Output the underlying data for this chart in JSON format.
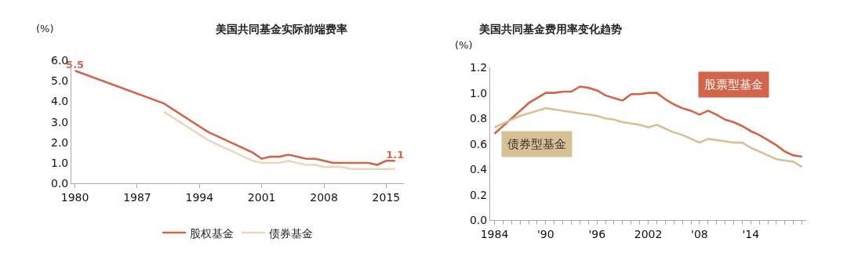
{
  "chart_data": [
    {
      "type": "line",
      "title": "美国共同基金实际前端费率",
      "ylabel": "(%)",
      "legend": "bottom",
      "xlim": [
        1979.6,
        2017
      ],
      "xticks": [
        1980,
        1987,
        1994,
        2001,
        2008,
        2015
      ],
      "ylim": [
        0,
        6
      ],
      "yticks": [
        {
          "value": 0,
          "label": "0.0"
        },
        {
          "value": 1,
          "label": "1.0"
        },
        {
          "value": 2,
          "label": "2.0"
        },
        {
          "value": 3,
          "label": "3.0"
        },
        {
          "value": 4,
          "label": "4.0"
        },
        {
          "value": 5,
          "label": "5.0"
        },
        {
          "value": 6,
          "label": "6.0"
        }
      ],
      "series": [
        {
          "name": "股权基金",
          "color": "#d0654a",
          "x": [
            1980,
            1990,
            1995,
            2000,
            2001,
            2002,
            2003,
            2004,
            2005,
            2006,
            2007,
            2008,
            2009,
            2010,
            2011,
            2012,
            2013,
            2014,
            2015,
            2016
          ],
          "values": [
            5.5,
            3.9,
            2.5,
            1.5,
            1.2,
            1.3,
            1.3,
            1.4,
            1.3,
            1.2,
            1.2,
            1.1,
            1.0,
            1.0,
            1.0,
            1.0,
            1.0,
            0.9,
            1.1,
            1.1
          ],
          "value_labels": [
            "5.5",
            null,
            null,
            null,
            null,
            null,
            null,
            null,
            null,
            null,
            null,
            null,
            null,
            null,
            null,
            null,
            null,
            null,
            null,
            "1.1"
          ]
        },
        {
          "name": "债券基金",
          "color": "#ead7b9",
          "x": [
            1990,
            1995,
            2000,
            2001,
            2002,
            2003,
            2004,
            2005,
            2006,
            2007,
            2008,
            2009,
            2010,
            2011,
            2012,
            2013,
            2014,
            2015,
            2016
          ],
          "values": [
            3.5,
            2.1,
            1.1,
            1.0,
            1.0,
            1.0,
            1.1,
            1.0,
            0.9,
            0.9,
            0.8,
            0.8,
            0.8,
            0.7,
            0.7,
            0.7,
            0.7,
            0.7,
            0.7
          ]
        }
      ]
    },
    {
      "type": "line",
      "title": "美国共同基金费用率变化趋势",
      "ylabel": "(%)",
      "legend": false,
      "x": [
        1984,
        1985,
        1986,
        1987,
        1988,
        1989,
        1990,
        1991,
        1992,
        1993,
        1994,
        1995,
        1996,
        1997,
        1998,
        1999,
        2000,
        2001,
        2002,
        2003,
        2004,
        2005,
        2006,
        2007,
        2008,
        2009,
        2010,
        2011,
        2012,
        2013,
        2014,
        2015,
        2016,
        2017,
        2018,
        2019,
        2020
      ],
      "xlim": [
        1983.5,
        2020.5
      ],
      "xticks": [
        1984,
        {
          "value": 1985,
          "label": null
        },
        {
          "value": 1986,
          "label": null
        },
        {
          "value": 1987,
          "label": null
        },
        {
          "value": 1988,
          "label": null
        },
        {
          "value": 1989,
          "label": null
        },
        {
          "value": 1990,
          "label": "'90"
        },
        {
          "value": 1991,
          "label": null
        },
        {
          "value": 1992,
          "label": null
        },
        {
          "value": 1993,
          "label": null
        },
        {
          "value": 1994,
          "label": null
        },
        {
          "value": 1995,
          "label": null
        },
        {
          "value": 1996,
          "label": "'96"
        },
        {
          "value": 1997,
          "label": null
        },
        {
          "value": 1998,
          "label": null
        },
        {
          "value": 1999,
          "label": null
        },
        {
          "value": 2000,
          "label": null
        },
        {
          "value": 2001,
          "label": null
        },
        2002,
        {
          "value": 2003,
          "label": null
        },
        {
          "value": 2004,
          "label": null
        },
        {
          "value": 2005,
          "label": null
        },
        {
          "value": 2006,
          "label": null
        },
        {
          "value": 2007,
          "label": null
        },
        {
          "value": 2008,
          "label": "'08"
        },
        {
          "value": 2009,
          "label": null
        },
        {
          "value": 2010,
          "label": null
        },
        {
          "value": 2011,
          "label": null
        },
        {
          "value": 2012,
          "label": null
        },
        {
          "value": 2013,
          "label": null
        },
        {
          "value": 2014,
          "label": "'14"
        },
        {
          "value": 2015,
          "label": null
        },
        {
          "value": 2016,
          "label": null
        },
        {
          "value": 2017,
          "label": null
        },
        {
          "value": 2018,
          "label": null
        },
        {
          "value": 2019,
          "label": null
        },
        {
          "value": 2020,
          "label": null
        }
      ],
      "ylim": [
        0,
        1.2
      ],
      "yticks": [
        {
          "value": 0,
          "label": "0.0"
        },
        {
          "value": 0.2,
          "label": "0.2"
        },
        {
          "value": 0.4,
          "label": "0.4"
        },
        {
          "value": 0.6,
          "label": "0.6"
        },
        {
          "value": 0.8,
          "label": "0.8"
        },
        {
          "value": 1,
          "label": "1.0"
        },
        {
          "value": 1.2,
          "label": "1.2"
        }
      ],
      "series": [
        {
          "name": "股票型基金",
          "color": "#d0654a",
          "values": [
            0.68,
            0.74,
            0.8,
            0.86,
            0.92,
            0.96,
            1.0,
            1.0,
            1.01,
            1.01,
            1.05,
            1.04,
            1.02,
            0.98,
            0.96,
            0.94,
            0.99,
            0.99,
            1.0,
            1.0,
            0.95,
            0.91,
            0.88,
            0.86,
            0.83,
            0.86,
            0.83,
            0.79,
            0.77,
            0.74,
            0.7,
            0.67,
            0.63,
            0.59,
            0.54,
            0.51,
            0.5
          ]
        },
        {
          "name": "债券型基金",
          "color": "#d9bf94",
          "values": [
            0.73,
            0.76,
            0.79,
            0.82,
            0.84,
            0.86,
            0.88,
            0.87,
            0.86,
            0.85,
            0.84,
            0.83,
            0.82,
            0.8,
            0.79,
            0.77,
            0.76,
            0.75,
            0.73,
            0.75,
            0.72,
            0.69,
            0.67,
            0.64,
            0.61,
            0.64,
            0.63,
            0.62,
            0.61,
            0.61,
            0.57,
            0.54,
            0.51,
            0.48,
            0.47,
            0.46,
            0.42
          ]
        }
      ]
    }
  ]
}
